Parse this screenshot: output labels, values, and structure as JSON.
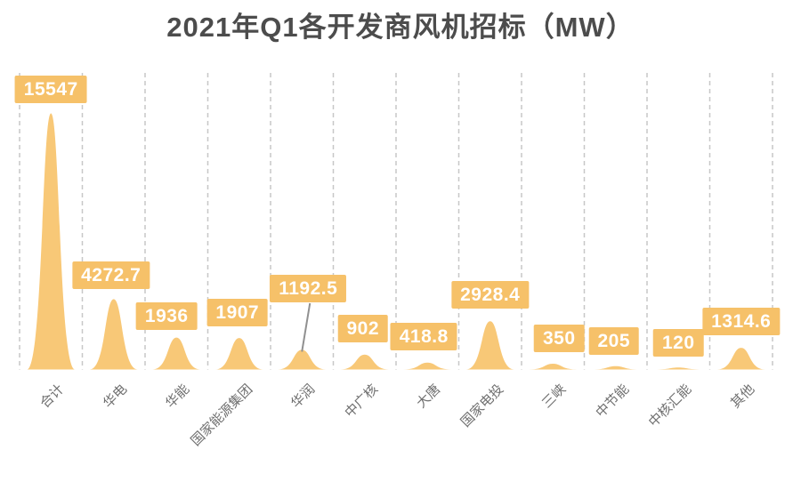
{
  "page": {
    "background": "#FFFFFF"
  },
  "chart_data": {
    "type": "area",
    "title": "2021年Q1各开发商风机招标（MW）",
    "unit": "MW",
    "categories": [
      "合计",
      "华电",
      "华能",
      "国家能源集团",
      "华润",
      "中广核",
      "大唐",
      "国家电投",
      "三峡",
      "中节能",
      "中核汇能",
      "其他"
    ],
    "values": [
      15547,
      4272.7,
      1936,
      1907,
      1192.5,
      902,
      418.8,
      2928.4,
      350,
      205,
      120,
      1314.6
    ],
    "value_labels": [
      "15547",
      "4272.7",
      "1936",
      "1907",
      "1192.5",
      "902",
      "418.8",
      "2928.4",
      "350",
      "205",
      "120",
      "1314.6"
    ],
    "ylim": [
      0,
      15547
    ],
    "xlabel": "",
    "ylabel": "",
    "legend": "none",
    "grid": "vertical-dashed",
    "annotations": [
      {
        "category": "华润",
        "note": "value label connected to peak by leader line"
      }
    ],
    "colors": {
      "peak": "#F8C877",
      "label_bg": "#F6C169",
      "label_text": "#FFFFFF",
      "title": "#4C4C4C",
      "axis_label": "#6F6F6F",
      "gridline": "#C7C7C7",
      "leader_line": "#909090",
      "background": "#FFFFFF"
    }
  }
}
